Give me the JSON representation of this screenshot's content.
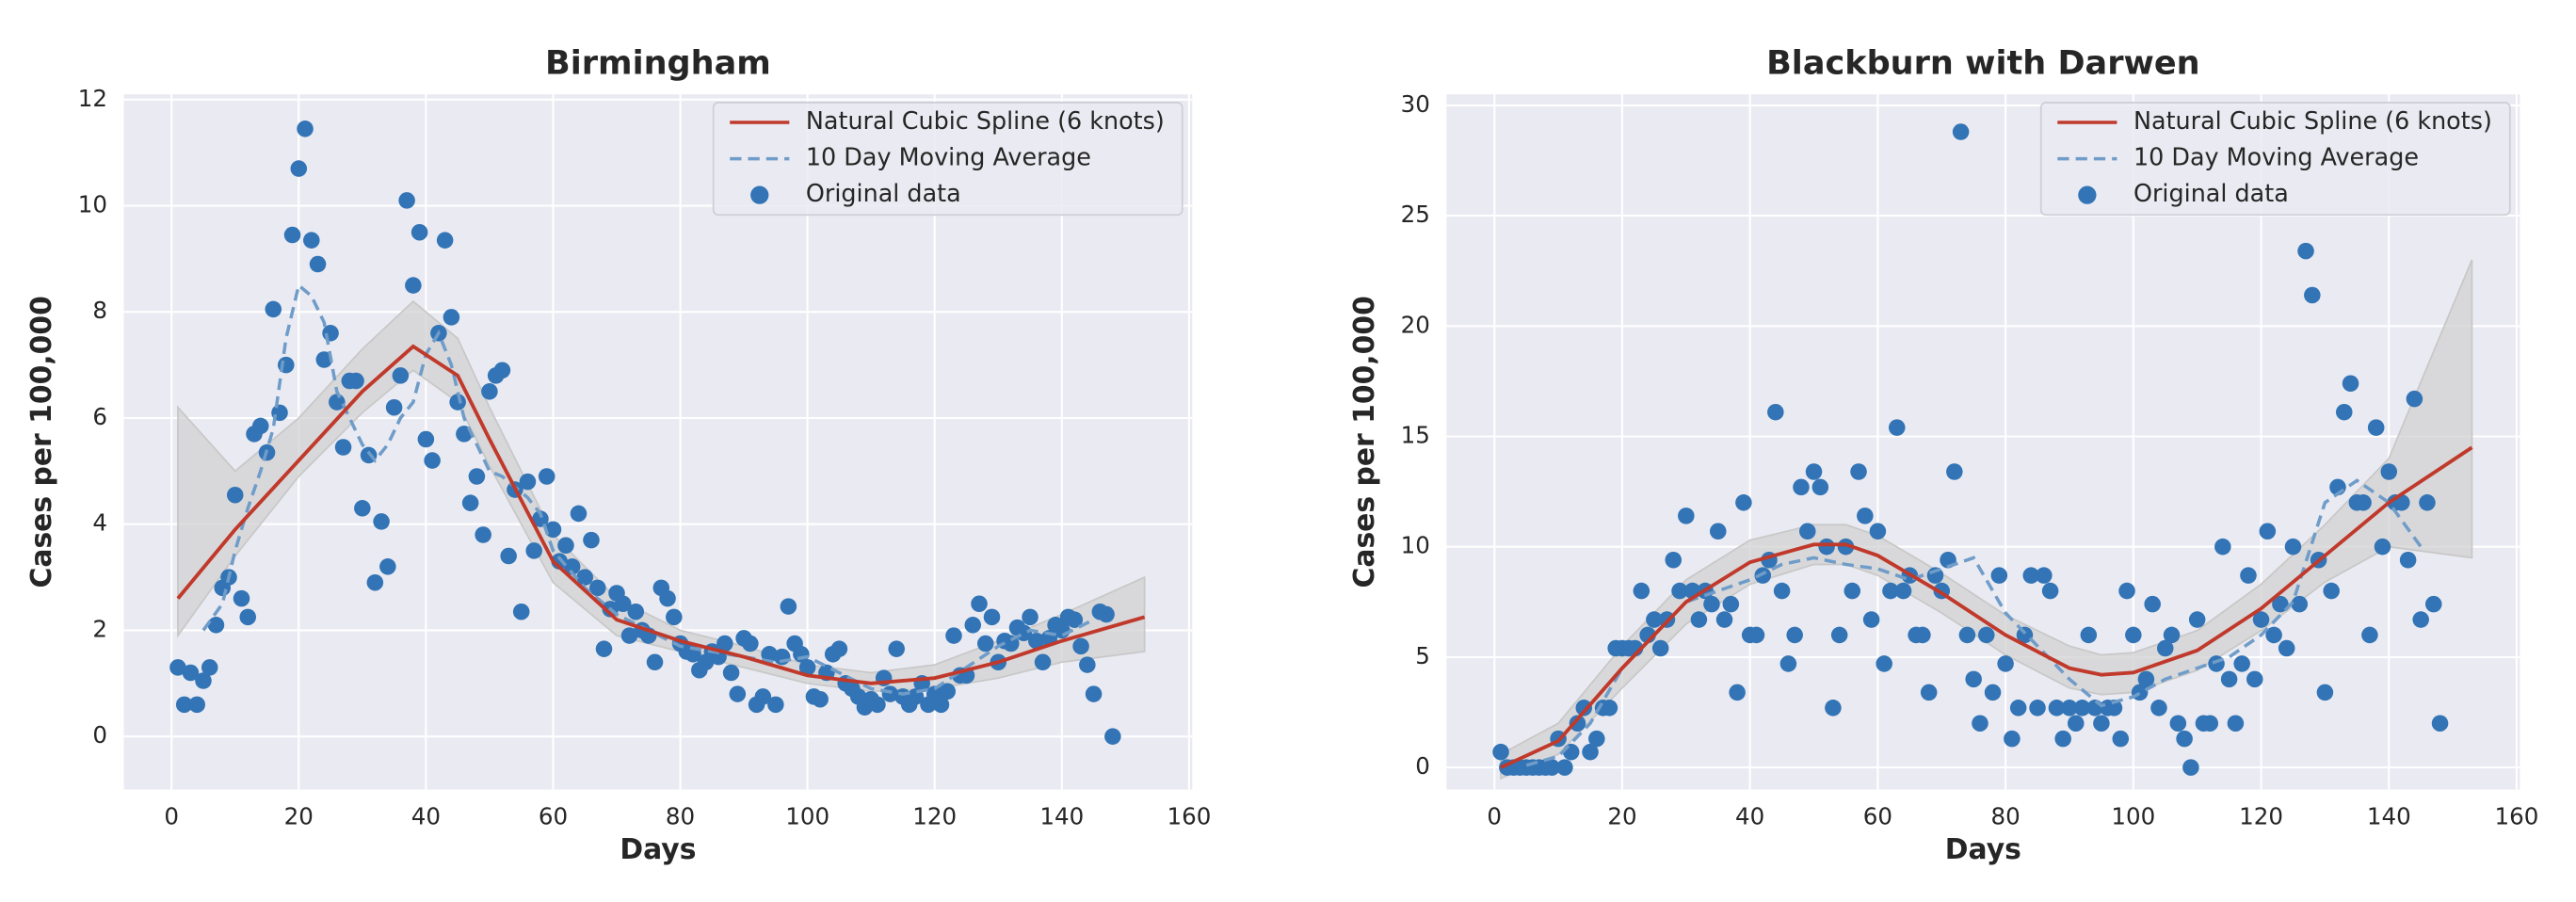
{
  "chart_data": [
    {
      "type": "line",
      "title": "Birmingham",
      "xlabel": "Days",
      "ylabel": "Cases per 100,000",
      "xlim": [
        -7.5,
        160.5
      ],
      "ylim": [
        -1,
        12.1
      ],
      "xticks": [
        0,
        20,
        40,
        60,
        80,
        100,
        120,
        140,
        160
      ],
      "yticks": [
        0,
        2,
        4,
        6,
        8,
        10,
        12
      ],
      "grid": true,
      "legend": "upper right",
      "band": {
        "color": "#d2d2d2",
        "x": [
          1,
          10,
          20,
          30,
          38,
          45,
          50,
          60,
          70,
          80,
          90,
          100,
          110,
          120,
          130,
          140,
          153
        ],
        "lower": [
          1.9,
          3.4,
          4.9,
          6.1,
          6.9,
          6.3,
          5.1,
          2.9,
          1.9,
          1.6,
          1.3,
          1.0,
          0.85,
          0.9,
          1.1,
          1.4,
          1.6
        ],
        "upper": [
          6.2,
          5.0,
          6.0,
          7.3,
          8.2,
          7.5,
          6.2,
          3.8,
          2.6,
          2.0,
          1.7,
          1.35,
          1.2,
          1.35,
          1.8,
          2.3,
          3.0
        ]
      },
      "series": [
        {
          "name": "Natural Cubic Spline (6 knots)",
          "color": "#c0392b",
          "style": "solid",
          "x": [
            1,
            10,
            20,
            30,
            38,
            45,
            50,
            60,
            70,
            80,
            90,
            100,
            110,
            120,
            130,
            140,
            153
          ],
          "values": [
            2.6,
            3.9,
            5.2,
            6.5,
            7.35,
            6.8,
            5.6,
            3.3,
            2.2,
            1.8,
            1.5,
            1.15,
            1.0,
            1.1,
            1.4,
            1.8,
            2.25
          ]
        },
        {
          "name": "10 Day Moving Average",
          "color": "#6f9cc8",
          "style": "dashed",
          "x": [
            5,
            8,
            10,
            12,
            14,
            16,
            18,
            20,
            22,
            24,
            26,
            28,
            30,
            32,
            34,
            36,
            38,
            40,
            42,
            44,
            46,
            48,
            50,
            52,
            54,
            56,
            58,
            60,
            65,
            70,
            75,
            80,
            85,
            90,
            95,
            100,
            105,
            110,
            115,
            120,
            125,
            130,
            135,
            140,
            145
          ],
          "values": [
            2.0,
            2.5,
            3.5,
            4.3,
            5.0,
            5.8,
            7.5,
            8.5,
            8.3,
            7.8,
            6.5,
            6.0,
            5.5,
            5.2,
            5.5,
            6.0,
            6.3,
            7.2,
            7.6,
            7.0,
            6.0,
            5.5,
            5.0,
            4.9,
            4.7,
            4.5,
            4.2,
            3.5,
            2.8,
            2.3,
            2.0,
            1.7,
            1.6,
            1.5,
            1.4,
            1.5,
            1.2,
            0.9,
            0.8,
            0.9,
            1.3,
            1.7,
            2.0,
            1.9,
            2.2
          ]
        },
        {
          "name": "Original data",
          "color": "#3274b5",
          "style": "markers",
          "x": [
            1,
            2,
            3,
            4,
            5,
            6,
            7,
            8,
            9,
            10,
            11,
            12,
            13,
            14,
            15,
            16,
            17,
            18,
            19,
            20,
            21,
            22,
            23,
            24,
            25,
            26,
            27,
            28,
            29,
            30,
            31,
            32,
            33,
            34,
            35,
            36,
            37,
            38,
            39,
            40,
            41,
            42,
            43,
            44,
            45,
            46,
            47,
            48,
            49,
            50,
            51,
            52,
            53,
            54,
            55,
            56,
            57,
            58,
            59,
            60,
            61,
            62,
            63,
            64,
            65,
            66,
            67,
            68,
            69,
            70,
            71,
            72,
            73,
            74,
            75,
            76,
            77,
            78,
            79,
            80,
            81,
            82,
            83,
            84,
            85,
            86,
            87,
            88,
            89,
            90,
            91,
            92,
            93,
            94,
            95,
            96,
            97,
            98,
            99,
            100,
            101,
            102,
            103,
            104,
            105,
            106,
            107,
            108,
            109,
            110,
            111,
            112,
            113,
            114,
            115,
            116,
            117,
            118,
            119,
            120,
            121,
            122,
            123,
            124,
            125,
            126,
            127,
            128,
            129,
            130,
            131,
            132,
            133,
            134,
            135,
            136,
            137,
            138,
            139,
            140,
            141,
            142,
            143,
            144,
            145,
            146,
            147,
            148
          ],
          "values": [
            1.3,
            0.6,
            1.2,
            0.6,
            1.05,
            1.3,
            2.1,
            2.8,
            3.0,
            4.55,
            2.6,
            2.25,
            5.7,
            5.85,
            5.35,
            8.05,
            6.1,
            7.0,
            9.45,
            10.7,
            11.45,
            9.35,
            8.9,
            7.1,
            7.6,
            6.3,
            5.45,
            6.7,
            6.7,
            4.3,
            5.3,
            2.9,
            4.05,
            3.2,
            6.2,
            6.8,
            10.1,
            8.5,
            9.5,
            5.6,
            5.2,
            7.6,
            9.35,
            7.9,
            6.3,
            5.7,
            4.4,
            4.9,
            3.8,
            6.5,
            6.8,
            6.9,
            3.4,
            4.65,
            2.35,
            4.8,
            3.5,
            4.1,
            4.9,
            3.9,
            3.3,
            3.6,
            3.2,
            4.2,
            3.0,
            3.7,
            2.8,
            1.65,
            2.4,
            2.7,
            2.5,
            1.9,
            2.35,
            2.0,
            1.9,
            1.4,
            2.8,
            2.6,
            2.25,
            1.75,
            1.6,
            1.55,
            1.25,
            1.4,
            1.6,
            1.5,
            1.75,
            1.2,
            0.8,
            1.85,
            1.75,
            0.6,
            0.75,
            1.55,
            0.6,
            1.5,
            2.45,
            1.75,
            1.55,
            1.3,
            0.75,
            0.7,
            1.2,
            1.55,
            1.65,
            1.0,
            0.9,
            0.75,
            0.55,
            0.7,
            0.6,
            1.1,
            0.8,
            1.65,
            0.75,
            0.6,
            0.75,
            1.0,
            0.6,
            0.8,
            0.6,
            0.85,
            1.9,
            1.15,
            1.15,
            2.1,
            2.5,
            1.75,
            2.25,
            1.4,
            1.8,
            1.75,
            2.05,
            1.95,
            2.25,
            1.8,
            1.4,
            1.85,
            2.1,
            2.0,
            2.25,
            2.2,
            1.7,
            1.35,
            0.8,
            2.35,
            2.3,
            0.0
          ]
        }
      ]
    },
    {
      "type": "line",
      "title": "Blackburn with Darwen",
      "xlabel": "Days",
      "ylabel": "Cases per 100,000",
      "xlim": [
        -7.5,
        160.5
      ],
      "ylim": [
        -1,
        30.5
      ],
      "xticks": [
        0,
        20,
        40,
        60,
        80,
        100,
        120,
        140,
        160
      ],
      "yticks": [
        0,
        5,
        10,
        15,
        20,
        25,
        30
      ],
      "grid": true,
      "legend": "upper right",
      "band": {
        "color": "#d2d2d2",
        "x": [
          1,
          10,
          20,
          30,
          40,
          50,
          55,
          60,
          70,
          80,
          90,
          95,
          100,
          110,
          120,
          130,
          140,
          153
        ],
        "lower": [
          -0.5,
          0.6,
          3.6,
          6.5,
          8.3,
          9.2,
          9.2,
          8.7,
          7.0,
          5.1,
          3.6,
          3.3,
          3.4,
          4.4,
          6.2,
          8.4,
          10.0,
          9.5
        ],
        "upper": [
          0.6,
          2.0,
          5.5,
          8.5,
          10.3,
          11.0,
          11.0,
          10.5,
          8.8,
          6.9,
          5.5,
          5.1,
          5.2,
          6.2,
          8.3,
          11.0,
          14.0,
          23.0
        ]
      },
      "series": [
        {
          "name": "Natural Cubic Spline (6 knots)",
          "color": "#c0392b",
          "style": "solid",
          "x": [
            1,
            10,
            20,
            30,
            40,
            50,
            55,
            60,
            70,
            80,
            90,
            95,
            100,
            110,
            120,
            130,
            140,
            153
          ],
          "values": [
            0,
            1.2,
            4.5,
            7.5,
            9.3,
            10.1,
            10.1,
            9.6,
            7.9,
            6.0,
            4.5,
            4.2,
            4.3,
            5.3,
            7.2,
            9.6,
            12.0,
            14.5
          ]
        },
        {
          "name": "10 Day Moving Average",
          "color": "#6f9cc8",
          "style": "dashed",
          "x": [
            5,
            10,
            15,
            20,
            25,
            30,
            35,
            40,
            45,
            50,
            55,
            60,
            65,
            70,
            75,
            80,
            85,
            90,
            95,
            100,
            105,
            110,
            115,
            120,
            125,
            130,
            135,
            140,
            145
          ],
          "values": [
            0.1,
            0.5,
            2.0,
            4.5,
            6.0,
            7.5,
            8.0,
            8.5,
            9.2,
            9.5,
            9.2,
            9.0,
            8.5,
            9.0,
            9.5,
            7.0,
            5.5,
            4.0,
            2.8,
            3.2,
            4.0,
            4.5,
            5.0,
            6.0,
            7.5,
            12.0,
            13.0,
            12.0,
            10.0
          ]
        },
        {
          "name": "Original data",
          "color": "#3274b5",
          "style": "markers",
          "x": [
            1,
            2,
            3,
            4,
            5,
            6,
            7,
            8,
            9,
            10,
            11,
            12,
            13,
            14,
            15,
            16,
            17,
            18,
            19,
            20,
            21,
            22,
            23,
            24,
            25,
            26,
            27,
            28,
            29,
            30,
            31,
            32,
            33,
            34,
            35,
            36,
            37,
            38,
            39,
            40,
            41,
            42,
            43,
            44,
            45,
            46,
            47,
            48,
            49,
            50,
            51,
            52,
            53,
            54,
            55,
            56,
            57,
            58,
            59,
            60,
            61,
            62,
            63,
            64,
            65,
            66,
            67,
            68,
            69,
            70,
            71,
            72,
            73,
            74,
            75,
            76,
            77,
            78,
            79,
            80,
            81,
            82,
            83,
            84,
            85,
            86,
            87,
            88,
            89,
            90,
            91,
            92,
            93,
            94,
            95,
            96,
            97,
            98,
            99,
            100,
            101,
            102,
            103,
            104,
            105,
            106,
            107,
            108,
            109,
            110,
            111,
            112,
            113,
            114,
            115,
            116,
            117,
            118,
            119,
            120,
            121,
            122,
            123,
            124,
            125,
            126,
            127,
            128,
            129,
            130,
            131,
            132,
            133,
            134,
            135,
            136,
            137,
            138,
            139,
            140,
            141,
            142,
            143,
            144,
            145,
            146,
            147,
            148
          ],
          "values": [
            0.7,
            0,
            0,
            0,
            0,
            0,
            0,
            0,
            0,
            1.3,
            0,
            0.7,
            2.0,
            2.7,
            0.7,
            1.3,
            2.7,
            2.7,
            5.4,
            5.4,
            5.4,
            5.4,
            8.0,
            6.0,
            6.7,
            5.4,
            6.7,
            9.4,
            8.0,
            11.4,
            8.0,
            6.7,
            8.0,
            7.4,
            10.7,
            6.7,
            7.4,
            3.4,
            12.0,
            6.0,
            6.0,
            8.7,
            9.4,
            16.1,
            8.0,
            4.7,
            6.0,
            12.7,
            10.7,
            13.4,
            12.7,
            10.0,
            2.7,
            6.0,
            10.0,
            8.0,
            13.4,
            11.4,
            6.7,
            10.7,
            4.7,
            8.0,
            15.4,
            8.0,
            8.7,
            6.0,
            6.0,
            3.4,
            8.7,
            8.0,
            9.4,
            13.4,
            28.8,
            6.0,
            4.0,
            2.0,
            6.0,
            3.4,
            8.7,
            4.7,
            1.3,
            2.7,
            6.0,
            8.7,
            2.7,
            8.7,
            8.0,
            2.7,
            1.3,
            2.7,
            2.0,
            2.7,
            6.0,
            2.7,
            2.0,
            2.7,
            2.7,
            1.3,
            8.0,
            6.0,
            3.4,
            4.0,
            7.4,
            2.7,
            5.4,
            6.0,
            2.0,
            1.3,
            0,
            6.7,
            2.0,
            2.0,
            4.7,
            10.0,
            4.0,
            2.0,
            4.7,
            8.7,
            4.0,
            6.7,
            10.7,
            6.0,
            7.4,
            5.4,
            10.0,
            7.4,
            23.4,
            21.4,
            9.4,
            3.4,
            8.0,
            12.7,
            16.1,
            17.4,
            12.0,
            12.0,
            6.0,
            15.4,
            10.0,
            13.4,
            12.0,
            12.0,
            9.4,
            16.7,
            6.7,
            12.0,
            7.4,
            2.0
          ]
        }
      ]
    }
  ]
}
